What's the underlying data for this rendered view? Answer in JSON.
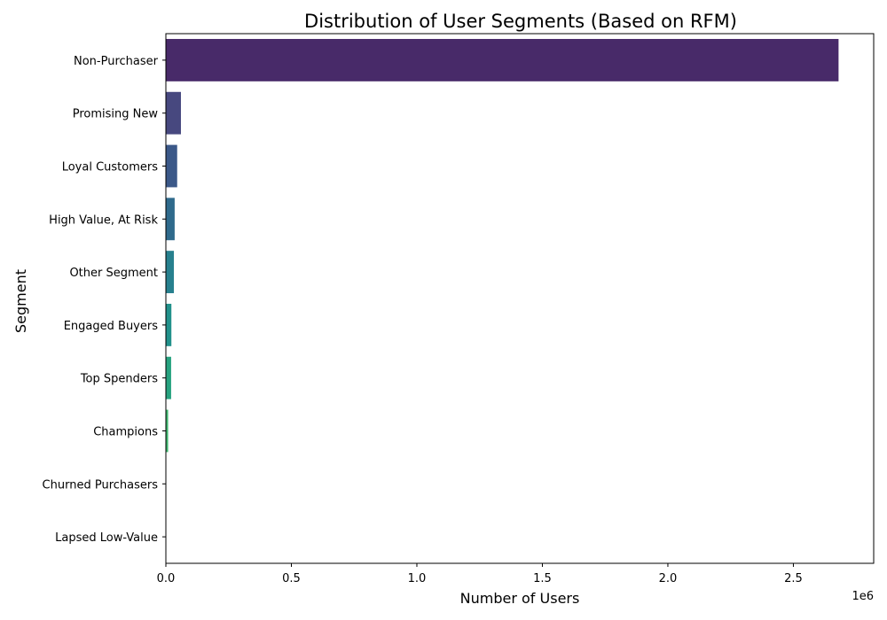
{
  "chart_data": {
    "type": "bar",
    "orientation": "horizontal",
    "title": "Distribution of User Segments (Based on RFM)",
    "xlabel": "Number of Users",
    "ylabel": "Segment",
    "x_offset_label": "1e6",
    "xlim": [
      0,
      2.82
    ],
    "x_ticks": [
      0.0,
      0.5,
      1.0,
      1.5,
      2.0,
      2.5
    ],
    "x_tick_labels": [
      "0.0",
      "0.5",
      "1.0",
      "1.5",
      "2.0",
      "2.5"
    ],
    "grid": false,
    "legend": false,
    "categories": [
      "Non-Purchaser",
      "Promising New",
      "Loyal Customers",
      "High Value, At Risk",
      "Other Segment",
      "Engaged Buyers",
      "Top Spenders",
      "Champions",
      "Churned Purchasers",
      "Lapsed Low-Value"
    ],
    "values": [
      2.68,
      0.06,
      0.045,
      0.035,
      0.032,
      0.022,
      0.021,
      0.009,
      0.0015,
      0.0005
    ],
    "colors": [
      "#482a69",
      "#47487f",
      "#3b5888",
      "#2f6a8c",
      "#27808e",
      "#22918b",
      "#27a27f",
      "#3db56d",
      "#6cc958",
      "#b8d93a"
    ]
  }
}
